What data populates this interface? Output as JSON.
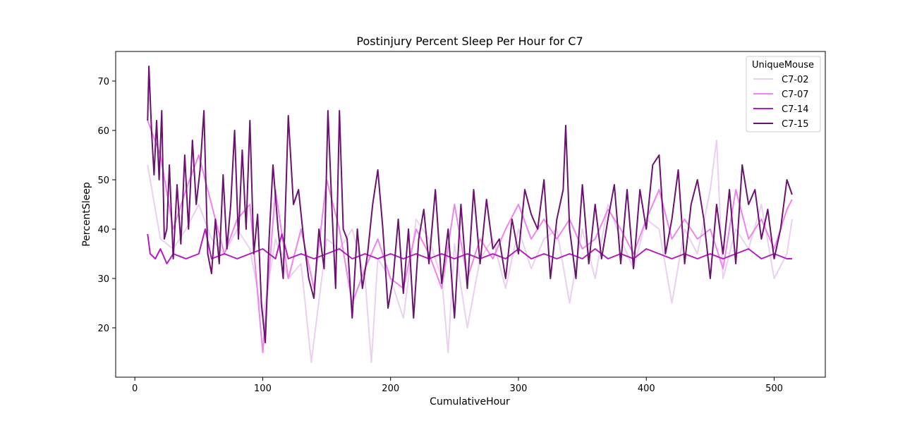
{
  "chart_data": {
    "type": "line",
    "title": "Postinjury Percent Sleep Per Hour for C7",
    "xlabel": "CumulativeHour",
    "ylabel": "PercentSleep",
    "xlim": [
      -15,
      540
    ],
    "ylim": [
      10,
      76
    ],
    "xticks": [
      0,
      100,
      200,
      300,
      400,
      500
    ],
    "yticks": [
      20,
      30,
      40,
      50,
      60,
      70
    ],
    "grid": false,
    "legend": {
      "title": "UniqueMouse",
      "position": "top-right"
    },
    "series": [
      {
        "name": "C7-02",
        "color": "#ead0f0",
        "x": [
          10,
          20,
          30,
          40,
          50,
          60,
          70,
          80,
          90,
          100,
          110,
          120,
          130,
          138,
          150,
          160,
          170,
          180,
          185,
          190,
          200,
          210,
          220,
          230,
          240,
          245,
          250,
          260,
          270,
          280,
          290,
          300,
          310,
          320,
          330,
          340,
          350,
          360,
          370,
          380,
          390,
          400,
          410,
          420,
          430,
          440,
          450,
          455,
          460,
          470,
          480,
          490,
          500,
          510,
          514
        ],
        "y": [
          53,
          38,
          36,
          40,
          45,
          38,
          35,
          40,
          36,
          22,
          38,
          30,
          33,
          13,
          38,
          36,
          40,
          30,
          13,
          34,
          30,
          22,
          42,
          38,
          30,
          15,
          37,
          20,
          34,
          38,
          28,
          40,
          32,
          38,
          40,
          25,
          40,
          30,
          45,
          38,
          32,
          42,
          40,
          25,
          40,
          35,
          48,
          58,
          30,
          40,
          36,
          45,
          30,
          35,
          42
        ]
      },
      {
        "name": "C7-07",
        "color": "#ee82ee",
        "x": [
          10,
          20,
          30,
          40,
          50,
          60,
          70,
          80,
          90,
          100,
          110,
          120,
          130,
          140,
          150,
          160,
          170,
          180,
          190,
          200,
          210,
          220,
          230,
          240,
          250,
          260,
          270,
          280,
          290,
          300,
          310,
          320,
          330,
          340,
          350,
          360,
          370,
          380,
          390,
          400,
          410,
          420,
          430,
          440,
          450,
          460,
          470,
          480,
          490,
          500,
          510,
          514
        ],
        "y": [
          62,
          55,
          40,
          48,
          55,
          45,
          35,
          42,
          45,
          15,
          48,
          30,
          40,
          28,
          50,
          40,
          25,
          32,
          38,
          30,
          28,
          40,
          35,
          28,
          45,
          30,
          38,
          34,
          40,
          45,
          38,
          42,
          38,
          42,
          36,
          38,
          44,
          40,
          35,
          42,
          48,
          38,
          42,
          38,
          40,
          32,
          48,
          38,
          42,
          36,
          44,
          46
        ]
      },
      {
        "name": "C7-14",
        "color": "#b31bbf",
        "x": [
          10,
          12,
          16,
          20,
          25,
          30,
          40,
          50,
          55,
          60,
          70,
          80,
          90,
          100,
          110,
          115,
          120,
          130,
          140,
          150,
          160,
          170,
          180,
          190,
          200,
          210,
          220,
          230,
          240,
          250,
          260,
          270,
          280,
          290,
          300,
          310,
          320,
          330,
          340,
          350,
          360,
          370,
          380,
          390,
          400,
          410,
          420,
          430,
          440,
          450,
          460,
          470,
          480,
          490,
          500,
          510,
          514
        ],
        "y": [
          39,
          35,
          34,
          36,
          33,
          35,
          34,
          35,
          40,
          34,
          35,
          34,
          35,
          36,
          34,
          39,
          34,
          35,
          34,
          35,
          36,
          34,
          35,
          34,
          35,
          34,
          35,
          34,
          35,
          34,
          35,
          34,
          35,
          34,
          36,
          34,
          35,
          34,
          35,
          34,
          36,
          34,
          35,
          34,
          36,
          35,
          34,
          35,
          34,
          35,
          34,
          35,
          36,
          34,
          35,
          34,
          34
        ]
      },
      {
        "name": "C7-15",
        "color": "#6b1170",
        "x": [
          10,
          11,
          13,
          15,
          17,
          19,
          21,
          23,
          25,
          27,
          30,
          33,
          36,
          39,
          42,
          45,
          48,
          51,
          54,
          57,
          60,
          63,
          66,
          69,
          72,
          75,
          78,
          81,
          84,
          87,
          90,
          93,
          96,
          99,
          102,
          105,
          108,
          112,
          116,
          120,
          124,
          128,
          132,
          136,
          140,
          144,
          148,
          151,
          154,
          157,
          160,
          163,
          166,
          170,
          174,
          178,
          182,
          186,
          190,
          194,
          198,
          202,
          206,
          210,
          214,
          218,
          222,
          226,
          230,
          235,
          240,
          245,
          250,
          255,
          260,
          265,
          270,
          275,
          280,
          285,
          290,
          295,
          300,
          305,
          310,
          315,
          320,
          325,
          330,
          335,
          337,
          340,
          345,
          350,
          355,
          360,
          365,
          370,
          375,
          380,
          385,
          390,
          395,
          400,
          405,
          410,
          415,
          420,
          425,
          430,
          435,
          440,
          445,
          450,
          455,
          460,
          465,
          470,
          475,
          480,
          485,
          490,
          495,
          500,
          505,
          510,
          514
        ],
        "y": [
          62,
          73,
          60,
          51,
          62,
          50,
          64,
          38,
          40,
          53,
          34,
          49,
          37,
          55,
          40,
          58,
          45,
          52,
          64,
          35,
          31,
          42,
          33,
          51,
          36,
          45,
          60,
          38,
          56,
          40,
          62,
          35,
          43,
          25,
          17,
          38,
          53,
          40,
          30,
          63,
          45,
          48,
          38,
          30,
          26,
          40,
          32,
          64,
          45,
          28,
          64,
          40,
          38,
          22,
          40,
          28,
          35,
          45,
          52,
          40,
          24,
          30,
          42,
          27,
          40,
          22,
          38,
          44,
          33,
          48,
          29,
          40,
          22,
          45,
          28,
          48,
          33,
          46,
          36,
          38,
          30,
          42,
          35,
          48,
          43,
          40,
          50,
          30,
          42,
          48,
          61,
          40,
          30,
          49,
          33,
          45,
          34,
          42,
          49,
          33,
          48,
          32,
          48,
          40,
          53,
          55,
          35,
          42,
          52,
          33,
          45,
          50,
          42,
          30,
          45,
          35,
          48,
          33,
          53,
          45,
          48,
          38,
          44,
          34,
          40,
          50,
          47
        ]
      }
    ]
  }
}
